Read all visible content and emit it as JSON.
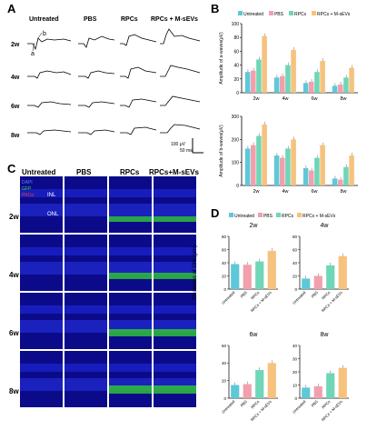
{
  "panels": {
    "A": "A",
    "B": "B",
    "C": "C",
    "D": "D"
  },
  "panelA": {
    "headers": [
      "Untreated",
      "PBS",
      "RPCs",
      "RPCs + M-sEVs"
    ],
    "rows": [
      "2w",
      "4w",
      "6w",
      "8w"
    ],
    "wave_a": "a",
    "wave_b": "b",
    "scale_y": "100 μV",
    "scale_x": "50 ms"
  },
  "panelB": {
    "legend": [
      "Untreated",
      "PBS",
      "RPCs",
      "RPCs + M-sEVs"
    ],
    "colors": [
      "#5ec8d8",
      "#f2a0ae",
      "#6fd6b8",
      "#f6c27e"
    ],
    "top": {
      "ylabel": "Amplitude of a-waves(μV)",
      "ylim": [
        0,
        100
      ],
      "yticks": [
        "0",
        "20",
        "40",
        "60",
        "80",
        "100"
      ]
    },
    "bottom": {
      "ylabel": "Amplitude of b-waves(μV)",
      "ylim": [
        0,
        300
      ],
      "yticks": [
        "0",
        "100",
        "200",
        "300"
      ]
    },
    "categories": [
      "2w",
      "4w",
      "6w",
      "8w"
    ]
  },
  "panelC": {
    "headers": [
      "Untreated",
      "PBS",
      "RPCs",
      "RPCs+M-sEVs"
    ],
    "rows": [
      "2w",
      "4w",
      "6w",
      "8w"
    ],
    "stain_dapi": "DAPI",
    "stain_gfp": "GFP",
    "stain_pkc": "PKCα",
    "layer_inl": "INL",
    "layer_onl": "ONL"
  },
  "panelD": {
    "legend": [
      "Untreated",
      "PBS",
      "RPCs",
      "RPCs + M-sEVs"
    ],
    "colors": [
      "#5ec8d8",
      "#f2a0ae",
      "#6fd6b8",
      "#f6c27e"
    ],
    "ylabel": "Thickness of ONL(μm)",
    "categories": [
      "Untreated",
      "PBS",
      "RPCs",
      "RPCs + M-sEVs"
    ],
    "subtitles": [
      "2w",
      "4w",
      "6w",
      "8w"
    ]
  },
  "chart_data": [
    {
      "type": "bar",
      "title": "",
      "ylabel": "Amplitude of a-waves(μV)",
      "categories": [
        "2w",
        "4w",
        "6w",
        "8w"
      ],
      "ylim": [
        0,
        100
      ],
      "series": [
        {
          "name": "Untreated",
          "values": [
            30,
            22,
            14,
            10
          ]
        },
        {
          "name": "PBS",
          "values": [
            32,
            24,
            16,
            12
          ]
        },
        {
          "name": "RPCs",
          "values": [
            48,
            40,
            30,
            22
          ]
        },
        {
          "name": "RPCs + M-sEVs",
          "values": [
            82,
            62,
            46,
            36
          ]
        }
      ]
    },
    {
      "type": "bar",
      "title": "",
      "ylabel": "Amplitude of b-waves(μV)",
      "categories": [
        "2w",
        "4w",
        "6w",
        "8w"
      ],
      "ylim": [
        0,
        300
      ],
      "series": [
        {
          "name": "Untreated",
          "values": [
            160,
            130,
            75,
            30
          ]
        },
        {
          "name": "PBS",
          "values": [
            175,
            120,
            65,
            25
          ]
        },
        {
          "name": "RPCs",
          "values": [
            215,
            160,
            120,
            80
          ]
        },
        {
          "name": "RPCs + M-sEVs",
          "values": [
            265,
            200,
            175,
            130
          ]
        }
      ]
    },
    {
      "type": "bar",
      "title": "2w",
      "ylabel": "Thickness of ONL(μm)",
      "categories": [
        "Untreated",
        "PBS",
        "RPCs",
        "RPCs + M-sEVs"
      ],
      "ylim": [
        0,
        80
      ],
      "yticks": [
        0,
        20,
        40,
        60,
        80
      ],
      "values": [
        38,
        37,
        42,
        58
      ]
    },
    {
      "type": "bar",
      "title": "4w",
      "ylabel": "Thickness of ONL(μm)",
      "categories": [
        "Untreated",
        "PBS",
        "RPCs",
        "RPCs + M-sEVs"
      ],
      "ylim": [
        0,
        80
      ],
      "yticks": [
        0,
        20,
        40,
        60,
        80
      ],
      "values": [
        16,
        20,
        36,
        50
      ]
    },
    {
      "type": "bar",
      "title": "6w",
      "ylabel": "Thickness of ONL(μm)",
      "categories": [
        "Untreated",
        "PBS",
        "RPCs",
        "RPCs + M-sEVs"
      ],
      "ylim": [
        0,
        60
      ],
      "yticks": [
        0,
        20,
        40,
        60
      ],
      "values": [
        15,
        16,
        32,
        40
      ]
    },
    {
      "type": "bar",
      "title": "8w",
      "ylabel": "Thickness of ONL(μm)",
      "categories": [
        "Untreated",
        "PBS",
        "RPCs",
        "RPCs + M-sEVs"
      ],
      "ylim": [
        0,
        40
      ],
      "yticks": [
        0,
        10,
        20,
        30,
        40
      ],
      "values": [
        8,
        9,
        19,
        23
      ]
    }
  ]
}
